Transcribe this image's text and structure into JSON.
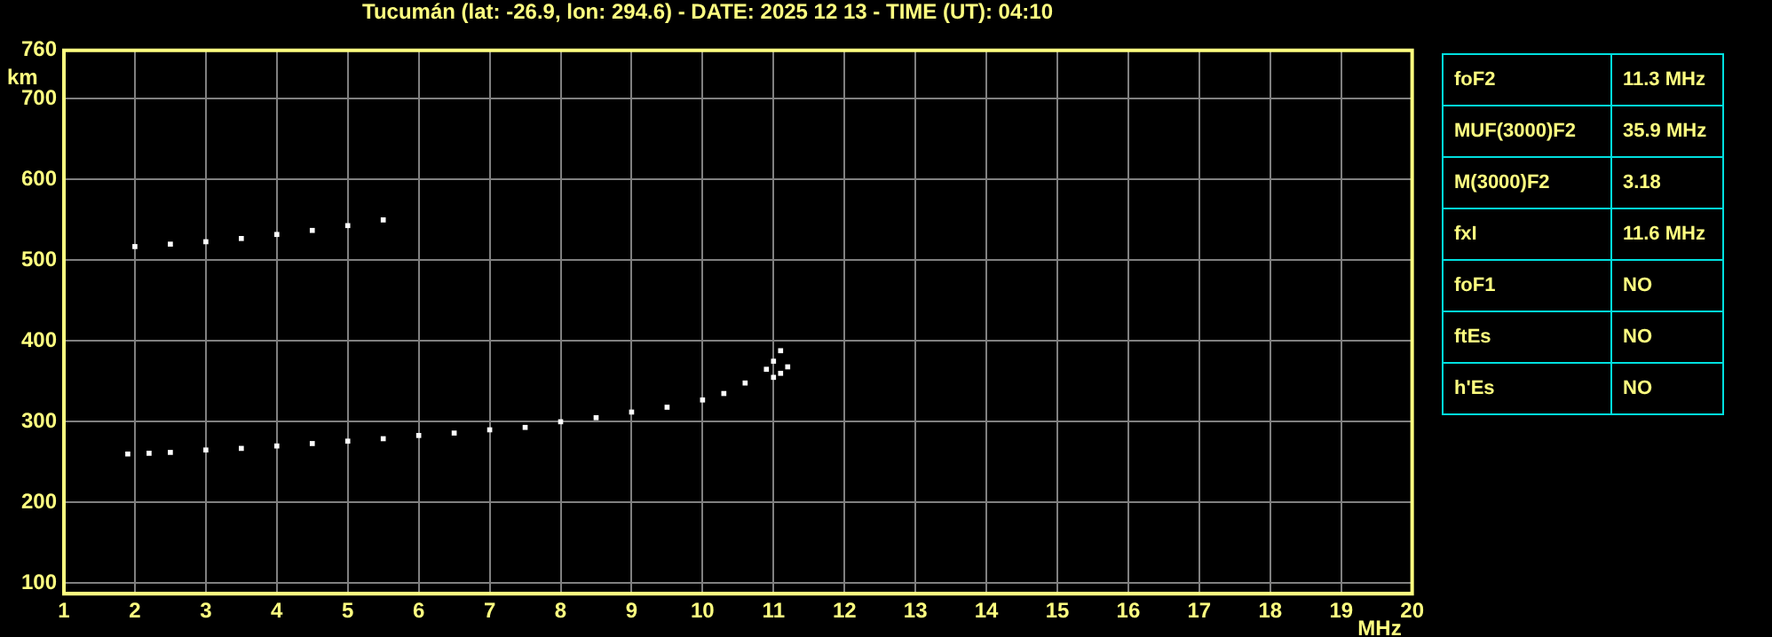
{
  "chart_data": {
    "type": "scatter",
    "title": "Tucumán (lat: -26.9, lon: 294.6) - DATE: 2025 12 13 - TIME (UT): 04:10",
    "xlabel": "MHz",
    "ylabel": "km",
    "xlim": [
      1,
      20
    ],
    "xticks": [
      1,
      2,
      3,
      4,
      5,
      6,
      7,
      8,
      9,
      10,
      11,
      12,
      13,
      14,
      15,
      16,
      17,
      18,
      19,
      20
    ],
    "ylim": [
      87,
      760
    ],
    "yticks": [
      100,
      200,
      300,
      400,
      500,
      600,
      700,
      760
    ],
    "grid": true,
    "marker": "square",
    "legend": false,
    "series": [
      {
        "color": "#ffffff",
        "x": [
          1.9,
          2.2,
          2.5,
          3,
          3.5,
          4,
          4.5,
          5,
          5.5,
          6,
          6.5,
          7,
          7.5,
          8,
          8.5,
          9,
          9.5,
          10,
          10.3,
          10.6,
          10.9,
          11.0,
          11.1,
          11.0,
          11.1,
          11.2
        ],
        "values": [
          260,
          261,
          262,
          265,
          267,
          270,
          273,
          276,
          279,
          283,
          286,
          290,
          293,
          300,
          305,
          312,
          318,
          327,
          335,
          348,
          365,
          375,
          388,
          355,
          360,
          368
        ]
      },
      {
        "color": "#ffffff",
        "x": [
          2.0,
          2.5,
          3,
          3.5,
          4,
          4.5,
          5,
          5.5
        ],
        "values": [
          517,
          520,
          523,
          527,
          532,
          537,
          543,
          550
        ]
      }
    ],
    "annotations": [
      "foF2",
      "11.3 MHz",
      "MUF(3000)F2",
      "35.9 MHz",
      "M(3000)F2",
      "3.18",
      "fxI",
      "11.6 MHz",
      "foF1",
      "NO",
      "ftEs",
      "NO",
      "h'Es",
      "NO"
    ]
  }
}
